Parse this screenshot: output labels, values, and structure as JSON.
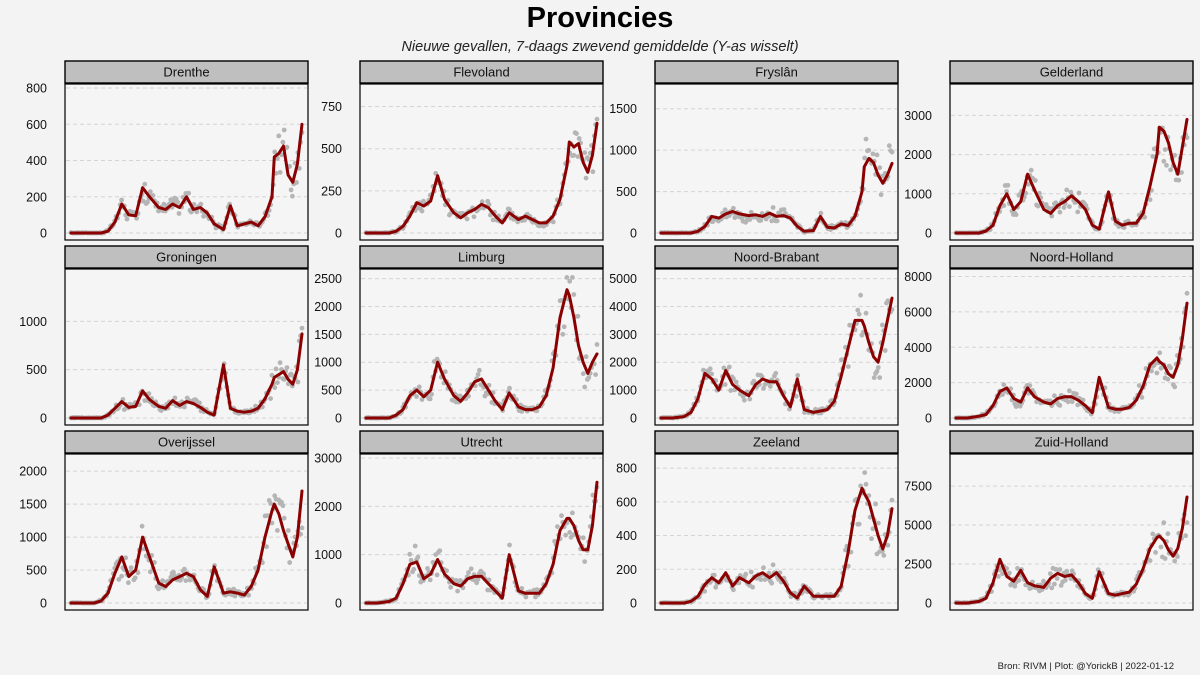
{
  "title": "Provincies",
  "subtitle": "Nieuwe gevallen, 7-daags zwevend gemiddelde  (Y-as wisselt)",
  "caption": "Bron: RIVM | Plot: @YorickB |  2022-01-12",
  "colors": {
    "line": "#8b0000",
    "dots": "#b5b5b5",
    "strip": "#bfbfbf",
    "panel": "#f5f5f5",
    "grid": "#d4d4d4"
  },
  "chart_data": [
    {
      "type": "line",
      "title": "Drenthe",
      "ylim": [
        0,
        800
      ],
      "yticks": [
        0,
        200,
        400,
        600,
        800
      ],
      "x": [
        0,
        0.05,
        0.1,
        0.13,
        0.16,
        0.19,
        0.22,
        0.25,
        0.28,
        0.31,
        0.34,
        0.38,
        0.41,
        0.44,
        0.47,
        0.5,
        0.53,
        0.56,
        0.59,
        0.62,
        0.66,
        0.69,
        0.72,
        0.75,
        0.78,
        0.81,
        0.84,
        0.87,
        0.88,
        0.9,
        0.92,
        0.94,
        0.96,
        0.98,
        1
      ],
      "values": [
        0,
        0,
        0,
        0,
        10,
        60,
        160,
        100,
        95,
        250,
        200,
        140,
        130,
        160,
        140,
        200,
        130,
        140,
        110,
        50,
        20,
        150,
        40,
        50,
        60,
        40,
        90,
        200,
        420,
        440,
        480,
        320,
        280,
        380,
        600
      ]
    },
    {
      "type": "line",
      "title": "Flevoland",
      "ylim": [
        0,
        860
      ],
      "yticks": [
        0,
        250,
        500,
        750
      ],
      "x": [
        0,
        0.05,
        0.1,
        0.13,
        0.16,
        0.19,
        0.22,
        0.25,
        0.28,
        0.31,
        0.34,
        0.38,
        0.41,
        0.44,
        0.47,
        0.5,
        0.53,
        0.56,
        0.59,
        0.62,
        0.66,
        0.69,
        0.72,
        0.75,
        0.78,
        0.81,
        0.84,
        0.87,
        0.88,
        0.9,
        0.92,
        0.94,
        0.96,
        0.98,
        1
      ],
      "values": [
        0,
        0,
        0,
        10,
        40,
        100,
        180,
        160,
        190,
        340,
        200,
        120,
        90,
        120,
        140,
        170,
        150,
        100,
        60,
        120,
        80,
        100,
        80,
        60,
        60,
        100,
        200,
        400,
        540,
        510,
        530,
        420,
        360,
        460,
        650
      ]
    },
    {
      "type": "line",
      "title": "Fryslân",
      "ylim": [
        0,
        1750
      ],
      "yticks": [
        0,
        500,
        1000,
        1500
      ],
      "x": [
        0,
        0.05,
        0.1,
        0.13,
        0.16,
        0.19,
        0.22,
        0.25,
        0.28,
        0.31,
        0.34,
        0.38,
        0.41,
        0.44,
        0.47,
        0.5,
        0.53,
        0.56,
        0.59,
        0.62,
        0.66,
        0.69,
        0.72,
        0.75,
        0.78,
        0.81,
        0.84,
        0.87,
        0.88,
        0.9,
        0.92,
        0.94,
        0.96,
        0.98,
        1
      ],
      "values": [
        0,
        0,
        0,
        0,
        20,
        80,
        200,
        180,
        230,
        260,
        230,
        210,
        220,
        200,
        240,
        200,
        210,
        180,
        80,
        20,
        30,
        200,
        70,
        60,
        110,
        90,
        200,
        500,
        800,
        900,
        850,
        700,
        600,
        700,
        840
      ]
    },
    {
      "type": "line",
      "title": "Gelderland",
      "ylim": [
        0,
        3700
      ],
      "yticks": [
        0,
        1000,
        2000,
        3000
      ],
      "x": [
        0,
        0.05,
        0.1,
        0.13,
        0.16,
        0.19,
        0.22,
        0.25,
        0.28,
        0.31,
        0.34,
        0.38,
        0.41,
        0.44,
        0.47,
        0.5,
        0.53,
        0.56,
        0.59,
        0.62,
        0.66,
        0.69,
        0.72,
        0.75,
        0.78,
        0.81,
        0.84,
        0.87,
        0.88,
        0.9,
        0.92,
        0.94,
        0.96,
        0.98,
        1
      ],
      "values": [
        0,
        0,
        0,
        50,
        200,
        700,
        1000,
        600,
        800,
        1500,
        1100,
        600,
        500,
        700,
        800,
        950,
        800,
        600,
        200,
        100,
        1050,
        300,
        200,
        250,
        250,
        500,
        1200,
        2000,
        2700,
        2600,
        2300,
        1800,
        1500,
        2200,
        2900
      ]
    },
    {
      "type": "line",
      "title": "Groningen",
      "ylim": [
        0,
        1500
      ],
      "yticks": [
        0,
        500,
        1000
      ],
      "x": [
        0,
        0.05,
        0.1,
        0.13,
        0.16,
        0.19,
        0.22,
        0.25,
        0.28,
        0.31,
        0.34,
        0.38,
        0.41,
        0.44,
        0.47,
        0.5,
        0.53,
        0.56,
        0.59,
        0.62,
        0.66,
        0.69,
        0.72,
        0.75,
        0.78,
        0.81,
        0.84,
        0.87,
        0.88,
        0.9,
        0.92,
        0.94,
        0.96,
        0.98,
        1
      ],
      "values": [
        0,
        0,
        0,
        0,
        30,
        100,
        170,
        110,
        120,
        280,
        190,
        120,
        100,
        180,
        130,
        170,
        150,
        110,
        60,
        30,
        550,
        100,
        70,
        60,
        70,
        100,
        200,
        350,
        420,
        450,
        480,
        400,
        350,
        500,
        870
      ]
    },
    {
      "type": "line",
      "title": "Limburg",
      "ylim": [
        0,
        2600
      ],
      "yticks": [
        0,
        500,
        1000,
        1500,
        2000,
        2500
      ],
      "x": [
        0,
        0.05,
        0.1,
        0.13,
        0.16,
        0.19,
        0.22,
        0.25,
        0.28,
        0.31,
        0.34,
        0.38,
        0.41,
        0.44,
        0.47,
        0.5,
        0.53,
        0.56,
        0.59,
        0.62,
        0.66,
        0.69,
        0.72,
        0.75,
        0.78,
        0.81,
        0.84,
        0.87,
        0.88,
        0.9,
        0.92,
        0.94,
        0.96,
        0.98,
        1
      ],
      "values": [
        0,
        0,
        0,
        50,
        150,
        400,
        500,
        380,
        500,
        1000,
        700,
        400,
        300,
        450,
        650,
        700,
        500,
        300,
        150,
        450,
        200,
        150,
        150,
        200,
        400,
        900,
        1800,
        2300,
        2200,
        1800,
        1300,
        1000,
        800,
        1000,
        1150
      ]
    },
    {
      "type": "line",
      "title": "Noord-Brabant",
      "ylim": [
        0,
        5200
      ],
      "yticks": [
        0,
        1000,
        2000,
        3000,
        4000,
        5000
      ],
      "x": [
        0,
        0.05,
        0.1,
        0.13,
        0.16,
        0.19,
        0.22,
        0.25,
        0.28,
        0.31,
        0.34,
        0.38,
        0.41,
        0.44,
        0.47,
        0.5,
        0.53,
        0.56,
        0.59,
        0.62,
        0.66,
        0.69,
        0.72,
        0.75,
        0.78,
        0.81,
        0.84,
        0.87,
        0.88,
        0.9,
        0.92,
        0.94,
        0.96,
        0.98,
        1
      ],
      "values": [
        0,
        0,
        50,
        200,
        700,
        1600,
        1400,
        1000,
        1700,
        1200,
        1000,
        800,
        1200,
        1400,
        1300,
        1300,
        800,
        400,
        1400,
        300,
        200,
        250,
        300,
        600,
        1500,
        2500,
        3500,
        3500,
        3300,
        2700,
        2200,
        2000,
        2700,
        3500,
        4300
      ]
    },
    {
      "type": "line",
      "title": "Noord-Holland",
      "ylim": [
        0,
        8200
      ],
      "yticks": [
        0,
        2000,
        4000,
        6000,
        8000
      ],
      "x": [
        0,
        0.05,
        0.1,
        0.13,
        0.16,
        0.19,
        0.22,
        0.25,
        0.28,
        0.31,
        0.34,
        0.38,
        0.41,
        0.44,
        0.47,
        0.5,
        0.53,
        0.56,
        0.59,
        0.62,
        0.66,
        0.69,
        0.72,
        0.75,
        0.78,
        0.81,
        0.84,
        0.87,
        0.88,
        0.9,
        0.92,
        0.94,
        0.96,
        0.98,
        1
      ],
      "values": [
        0,
        0,
        100,
        200,
        700,
        1500,
        1700,
        1100,
        900,
        1700,
        1200,
        900,
        800,
        1100,
        1200,
        1200,
        1000,
        700,
        300,
        2300,
        600,
        500,
        500,
        600,
        1000,
        1800,
        3000,
        3400,
        3200,
        3000,
        2500,
        2300,
        3000,
        4500,
        6500
      ]
    },
    {
      "type": "line",
      "title": "Overijssel",
      "ylim": [
        0,
        2200
      ],
      "yticks": [
        0,
        500,
        1000,
        1500,
        2000
      ],
      "x": [
        0,
        0.05,
        0.1,
        0.13,
        0.16,
        0.19,
        0.22,
        0.25,
        0.28,
        0.31,
        0.34,
        0.38,
        0.41,
        0.44,
        0.47,
        0.5,
        0.53,
        0.56,
        0.59,
        0.62,
        0.66,
        0.69,
        0.72,
        0.75,
        0.78,
        0.81,
        0.84,
        0.87,
        0.88,
        0.9,
        0.92,
        0.94,
        0.96,
        0.98,
        1
      ],
      "values": [
        0,
        0,
        0,
        30,
        150,
        450,
        700,
        400,
        500,
        1000,
        700,
        300,
        250,
        350,
        400,
        450,
        400,
        200,
        100,
        550,
        150,
        170,
        150,
        120,
        250,
        500,
        1000,
        1400,
        1500,
        1350,
        1100,
        900,
        700,
        1000,
        1700
      ]
    },
    {
      "type": "line",
      "title": "Utrecht",
      "ylim": [
        0,
        3000
      ],
      "yticks": [
        0,
        1000,
        2000,
        3000
      ],
      "x": [
        0,
        0.05,
        0.1,
        0.13,
        0.16,
        0.19,
        0.22,
        0.25,
        0.28,
        0.31,
        0.34,
        0.38,
        0.41,
        0.44,
        0.47,
        0.5,
        0.53,
        0.56,
        0.59,
        0.62,
        0.66,
        0.69,
        0.72,
        0.75,
        0.78,
        0.81,
        0.84,
        0.87,
        0.88,
        0.9,
        0.92,
        0.94,
        0.96,
        0.98,
        1
      ],
      "values": [
        0,
        0,
        30,
        100,
        400,
        800,
        850,
        500,
        600,
        900,
        600,
        400,
        350,
        500,
        550,
        550,
        400,
        250,
        100,
        1000,
        250,
        200,
        200,
        200,
        400,
        800,
        1500,
        1750,
        1750,
        1600,
        1300,
        1100,
        1100,
        1600,
        2500
      ]
    },
    {
      "type": "line",
      "title": "Zeeland",
      "ylim": [
        0,
        860
      ],
      "yticks": [
        0,
        200,
        400,
        600,
        800
      ],
      "x": [
        0,
        0.05,
        0.1,
        0.13,
        0.16,
        0.19,
        0.22,
        0.25,
        0.28,
        0.31,
        0.34,
        0.38,
        0.41,
        0.44,
        0.47,
        0.5,
        0.53,
        0.56,
        0.59,
        0.62,
        0.66,
        0.69,
        0.72,
        0.75,
        0.78,
        0.81,
        0.84,
        0.87,
        0.88,
        0.9,
        0.92,
        0.94,
        0.96,
        0.98,
        1
      ],
      "values": [
        0,
        0,
        0,
        10,
        40,
        110,
        150,
        120,
        180,
        100,
        150,
        120,
        160,
        180,
        150,
        180,
        130,
        60,
        30,
        100,
        40,
        40,
        40,
        40,
        100,
        300,
        550,
        680,
        650,
        600,
        500,
        400,
        320,
        400,
        560
      ]
    },
    {
      "type": "line",
      "title": "Zuid-Holland",
      "ylim": [
        0,
        9300
      ],
      "yticks": [
        0,
        2500,
        5000,
        7500
      ],
      "x": [
        0,
        0.05,
        0.1,
        0.13,
        0.16,
        0.19,
        0.22,
        0.25,
        0.28,
        0.31,
        0.34,
        0.38,
        0.41,
        0.44,
        0.47,
        0.5,
        0.53,
        0.56,
        0.59,
        0.62,
        0.66,
        0.69,
        0.72,
        0.75,
        0.78,
        0.81,
        0.84,
        0.87,
        0.88,
        0.9,
        0.92,
        0.94,
        0.96,
        0.98,
        1
      ],
      "values": [
        0,
        0,
        100,
        300,
        1300,
        2800,
        1700,
        1400,
        2100,
        1300,
        1100,
        1000,
        1600,
        1900,
        1700,
        1800,
        1300,
        600,
        300,
        2000,
        600,
        500,
        600,
        700,
        1200,
        2200,
        3500,
        4200,
        4300,
        4000,
        3400,
        3000,
        3500,
        4800,
        6800
      ]
    }
  ]
}
